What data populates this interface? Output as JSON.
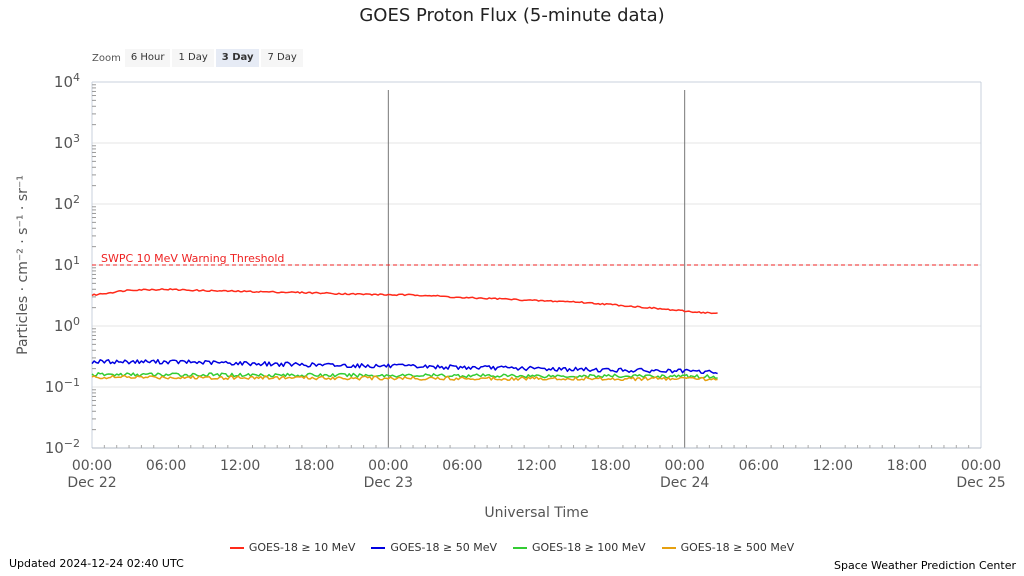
{
  "colors": {
    "s10": "#ff2a1a",
    "s50": "#0000e0",
    "s100": "#33cc33",
    "s500": "#e6a010",
    "threshold": "#ee2222",
    "grid": "#e4e4e4",
    "day_line": "#777777",
    "axis_text": "#555555"
  },
  "zoom": {
    "label": "Zoom",
    "buttons": [
      "6 Hour",
      "1 Day",
      "3 Day",
      "7 Day"
    ],
    "active": "3 Day"
  },
  "chart_data": {
    "type": "line",
    "title": "GOES Proton Flux (5-minute data)",
    "xlabel": "Universal Time",
    "ylabel": "Particles · cm⁻² · s⁻¹ · sr⁻¹",
    "yscale": "log",
    "ylim": [
      0.01,
      10000
    ],
    "y_ticks": [
      {
        "value": 0.01,
        "base": "10",
        "exp": "−2"
      },
      {
        "value": 0.1,
        "base": "10",
        "exp": "−1"
      },
      {
        "value": 1,
        "base": "10",
        "exp": "0"
      },
      {
        "value": 10,
        "base": "10",
        "exp": "1"
      },
      {
        "value": 100,
        "base": "10",
        "exp": "2"
      },
      {
        "value": 1000,
        "base": "10",
        "exp": "3"
      },
      {
        "value": 10000,
        "base": "10",
        "exp": "4"
      }
    ],
    "xlim_hours": [
      0,
      72
    ],
    "x_ticks": [
      {
        "hour": 0,
        "time": "00:00",
        "date": "Dec 22"
      },
      {
        "hour": 6,
        "time": "06:00",
        "date": ""
      },
      {
        "hour": 12,
        "time": "12:00",
        "date": ""
      },
      {
        "hour": 18,
        "time": "18:00",
        "date": ""
      },
      {
        "hour": 24,
        "time": "00:00",
        "date": "Dec 23"
      },
      {
        "hour": 30,
        "time": "06:00",
        "date": ""
      },
      {
        "hour": 36,
        "time": "12:00",
        "date": ""
      },
      {
        "hour": 42,
        "time": "18:00",
        "date": ""
      },
      {
        "hour": 48,
        "time": "00:00",
        "date": "Dec 24"
      },
      {
        "hour": 54,
        "time": "06:00",
        "date": ""
      },
      {
        "hour": 60,
        "time": "12:00",
        "date": ""
      },
      {
        "hour": 66,
        "time": "18:00",
        "date": ""
      },
      {
        "hour": 72,
        "time": "00:00",
        "date": "Dec 25"
      }
    ],
    "day_boundaries_hours": [
      24,
      48
    ],
    "threshold": {
      "value": 10,
      "label": "SWPC 10 MeV Warning Threshold"
    },
    "series": [
      {
        "name": "GOES-18 ≥ 10 MeV",
        "color_key": "s10",
        "noise_log": 0.012,
        "x_hours": [
          0,
          3,
          6,
          9,
          12,
          15,
          18,
          21,
          24,
          27,
          30,
          33,
          36,
          39,
          42,
          45,
          48,
          50.67
        ],
        "values": [
          3.2,
          3.9,
          4.0,
          3.8,
          3.7,
          3.6,
          3.5,
          3.35,
          3.25,
          3.2,
          2.9,
          2.8,
          2.6,
          2.5,
          2.25,
          2.0,
          1.75,
          1.6
        ]
      },
      {
        "name": "GOES-18 ≥ 50 MeV",
        "color_key": "s50",
        "noise_log": 0.035,
        "x_hours": [
          0,
          6,
          12,
          18,
          24,
          30,
          36,
          42,
          48,
          50.67
        ],
        "values": [
          0.26,
          0.26,
          0.245,
          0.23,
          0.22,
          0.21,
          0.2,
          0.19,
          0.18,
          0.175
        ]
      },
      {
        "name": "GOES-18 ≥ 100 MeV",
        "color_key": "s100",
        "noise_log": 0.03,
        "x_hours": [
          0,
          12,
          24,
          36,
          48,
          50.67
        ],
        "values": [
          0.16,
          0.158,
          0.155,
          0.152,
          0.15,
          0.148
        ]
      },
      {
        "name": "GOES-18 ≥ 500 MeV",
        "color_key": "s500",
        "noise_log": 0.03,
        "x_hours": [
          0,
          12,
          24,
          36,
          48,
          50.67
        ],
        "values": [
          0.145,
          0.143,
          0.14,
          0.138,
          0.136,
          0.135
        ]
      }
    ]
  },
  "footer": {
    "updated": "Updated 2024-12-24 02:40 UTC",
    "credit": "Space Weather Prediction Center"
  }
}
